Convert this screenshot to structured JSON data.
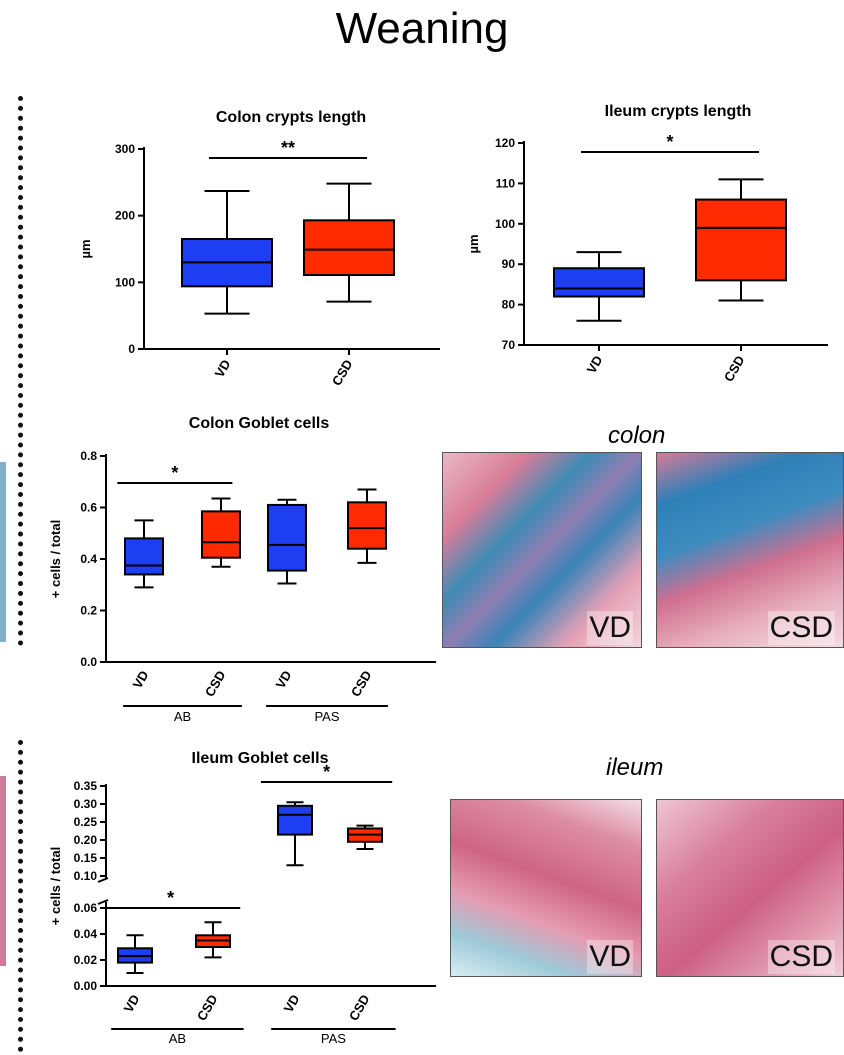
{
  "page": {
    "title": "Weaning"
  },
  "colors": {
    "vd": "#1e3ef2",
    "csd": "#ff2a00",
    "stroke": "#000000"
  },
  "images": {
    "colon": {
      "label": "colon",
      "vd_caption": "VD",
      "csd_caption": "CSD"
    },
    "ileum": {
      "label": "ileum",
      "vd_caption": "VD",
      "csd_caption": "CSD"
    }
  },
  "chart_data": [
    {
      "id": "colon_crypts",
      "type": "box",
      "title": "Colon crypts length",
      "ylabel": "µm",
      "ylim": [
        0,
        300
      ],
      "yticks": [
        0,
        100,
        200,
        300
      ],
      "categories": [
        "VD",
        "CSD"
      ],
      "groups": [],
      "boxes": [
        {
          "label": "VD",
          "color": "vd",
          "min": 53,
          "q1": 94,
          "median": 130,
          "q3": 165,
          "max": 237
        },
        {
          "label": "CSD",
          "color": "csd",
          "min": 71,
          "q1": 111,
          "median": 149,
          "q3": 193,
          "max": 248
        }
      ],
      "significance": [
        {
          "from": 0,
          "to": 1,
          "label": "**"
        }
      ]
    },
    {
      "id": "ileum_crypts",
      "type": "box",
      "title": "Ileum crypts length",
      "ylabel": "µm",
      "ylim": [
        70,
        120
      ],
      "yticks": [
        70,
        80,
        90,
        100,
        110,
        120
      ],
      "categories": [
        "VD",
        "CSD"
      ],
      "groups": [],
      "boxes": [
        {
          "label": "VD",
          "color": "vd",
          "min": 76,
          "q1": 82,
          "median": 84,
          "q3": 89,
          "max": 93
        },
        {
          "label": "CSD",
          "color": "csd",
          "min": 81,
          "q1": 86,
          "median": 99,
          "q3": 106,
          "max": 111
        }
      ],
      "significance": [
        {
          "from": 0,
          "to": 1,
          "label": "*"
        }
      ]
    },
    {
      "id": "colon_goblet",
      "type": "box",
      "title": "Colon Goblet cells",
      "ylabel": "+ cells / total",
      "ylim": [
        0,
        0.8
      ],
      "yticks": [
        "0.0",
        "0.2",
        "0.4",
        "0.6",
        "0.8"
      ],
      "categories": [
        "VD",
        "CSD",
        "VD",
        "CSD"
      ],
      "groups": [
        {
          "label": "AB",
          "span": [
            0,
            1
          ]
        },
        {
          "label": "PAS",
          "span": [
            2,
            3
          ]
        }
      ],
      "boxes": [
        {
          "label": "VD",
          "color": "vd",
          "min": 0.29,
          "q1": 0.34,
          "median": 0.375,
          "q3": 0.48,
          "max": 0.55
        },
        {
          "label": "CSD",
          "color": "csd",
          "min": 0.37,
          "q1": 0.405,
          "median": 0.465,
          "q3": 0.585,
          "max": 0.635
        },
        {
          "label": "VD",
          "color": "vd",
          "min": 0.305,
          "q1": 0.355,
          "median": 0.455,
          "q3": 0.61,
          "max": 0.63
        },
        {
          "label": "CSD",
          "color": "csd",
          "min": 0.385,
          "q1": 0.44,
          "median": 0.52,
          "q3": 0.62,
          "max": 0.67
        }
      ],
      "significance": [
        {
          "from": 0,
          "to": 1,
          "label": "*"
        }
      ]
    },
    {
      "id": "ileum_goblet",
      "type": "box",
      "title": "Ileum Goblet cells",
      "ylabel": "+ cells / total",
      "broken_axis": true,
      "ylim_lower": [
        0,
        0.06
      ],
      "yticks_lower": [
        "0.00",
        "0.02",
        "0.04",
        "0.06"
      ],
      "ylim_upper": [
        0.1,
        0.35
      ],
      "yticks_upper": [
        "0.10",
        "0.15",
        "0.20",
        "0.25",
        "0.30",
        "0.35"
      ],
      "categories": [
        "VD",
        "CSD",
        "VD",
        "CSD"
      ],
      "groups": [
        {
          "label": "AB",
          "span": [
            0,
            1
          ]
        },
        {
          "label": "PAS",
          "span": [
            2,
            3
          ]
        }
      ],
      "boxes": [
        {
          "label": "VD",
          "color": "vd",
          "min": 0.01,
          "q1": 0.018,
          "median": 0.023,
          "q3": 0.029,
          "max": 0.039
        },
        {
          "label": "CSD",
          "color": "csd",
          "min": 0.022,
          "q1": 0.03,
          "median": 0.035,
          "q3": 0.039,
          "max": 0.049
        },
        {
          "label": "VD",
          "color": "vd",
          "min": 0.13,
          "q1": 0.215,
          "median": 0.27,
          "q3": 0.295,
          "max": 0.305
        },
        {
          "label": "CSD",
          "color": "csd",
          "min": 0.175,
          "q1": 0.195,
          "median": 0.215,
          "q3": 0.232,
          "max": 0.24
        }
      ],
      "significance": [
        {
          "from": 0,
          "to": 1,
          "label": "*"
        },
        {
          "from": 2,
          "to": 3,
          "label": "*"
        }
      ]
    }
  ]
}
